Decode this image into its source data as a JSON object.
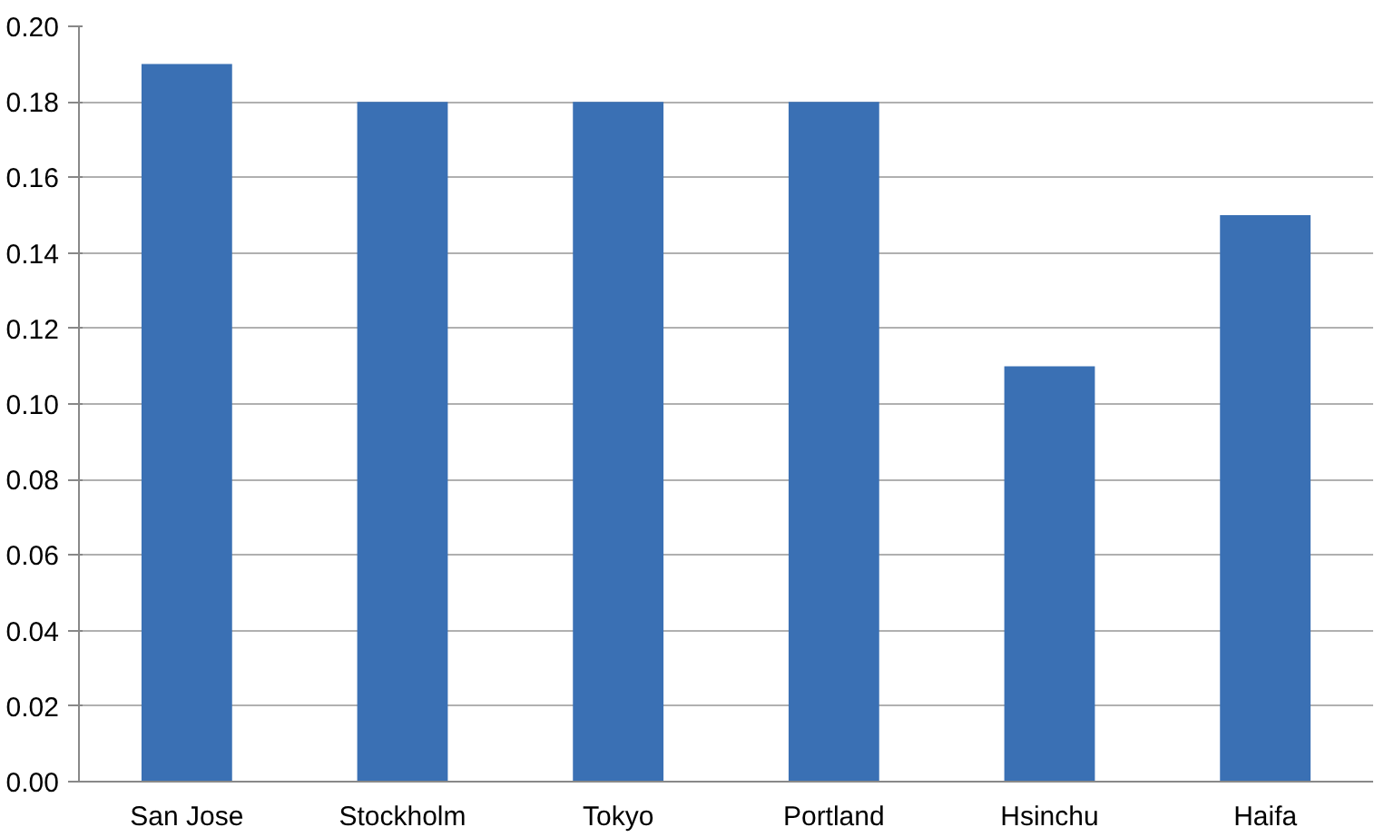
{
  "chart_data": {
    "type": "bar",
    "categories": [
      "San Jose",
      "Stockholm",
      "Tokyo",
      "Portland",
      "Hsinchu",
      "Haifa"
    ],
    "values": [
      0.19,
      0.18,
      0.18,
      0.18,
      0.11,
      0.15
    ],
    "color": "#3a70b4",
    "ylim": [
      0,
      0.2
    ],
    "yticks": [
      {
        "value": 0,
        "label": "0.00"
      },
      {
        "value": 0.02,
        "label": "0.02"
      },
      {
        "value": 0.04,
        "label": "0.04"
      },
      {
        "value": 0.06,
        "label": "0.06"
      },
      {
        "value": 0.08,
        "label": "0.08"
      },
      {
        "value": 0.1,
        "label": "0.10"
      },
      {
        "value": 0.12,
        "label": "0.12"
      },
      {
        "value": 0.14,
        "label": "0.14"
      },
      {
        "value": 0.16,
        "label": "0.16"
      },
      {
        "value": 0.18,
        "label": "0.18"
      },
      {
        "value": 0.2,
        "label": "0.20"
      }
    ],
    "grid": "y"
  }
}
